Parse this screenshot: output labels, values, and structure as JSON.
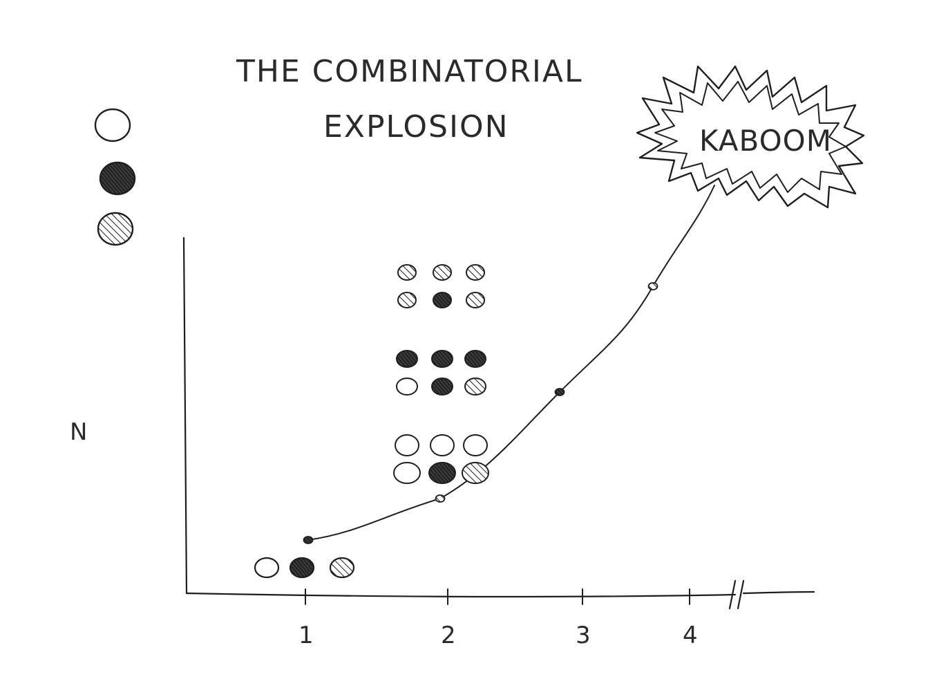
{
  "colors": {
    "ink": "#1e1e1e",
    "paper": "#ffffff",
    "solid_fill": "#2b2b2b",
    "hatch": "#1e1e1e"
  },
  "legend": {
    "markers": [
      {
        "style": "open"
      },
      {
        "style": "solid"
      },
      {
        "style": "hatched"
      }
    ]
  },
  "chart_data": {
    "type": "line",
    "title": "THE COMBINATORIAL EXPLOSION",
    "title_lines": [
      "THE COMBINATORIAL",
      "EXPLOSION"
    ],
    "xlabel": "",
    "ylabel": "N",
    "x_ticks": [
      "1",
      "2",
      "3",
      "4"
    ],
    "x_axis_break": true,
    "grid": false,
    "legend_position": "top-left",
    "series": [
      {
        "x": [
          1,
          2,
          3,
          4
        ],
        "y": [
          3,
          9,
          27,
          81
        ],
        "marker_styles": [
          "solid",
          "hatched",
          "solid",
          "hatched"
        ]
      }
    ],
    "annotations": [
      {
        "text": "KABOOM",
        "points_to": "end of curve"
      }
    ],
    "sample_sets": [
      {
        "x": 1,
        "pairs": [
          [
            "open"
          ],
          [
            "solid"
          ],
          [
            "hatched"
          ]
        ]
      },
      {
        "x": 2,
        "pairs": [
          [
            "hatched",
            "hatched"
          ],
          [
            "hatched",
            "solid"
          ],
          [
            "hatched",
            "hatched"
          ],
          [
            "solid",
            "open"
          ],
          [
            "solid",
            "solid"
          ],
          [
            "solid",
            "hatched"
          ],
          [
            "open",
            "open"
          ],
          [
            "open",
            "solid"
          ],
          [
            "open",
            "hatched"
          ]
        ]
      }
    ]
  }
}
